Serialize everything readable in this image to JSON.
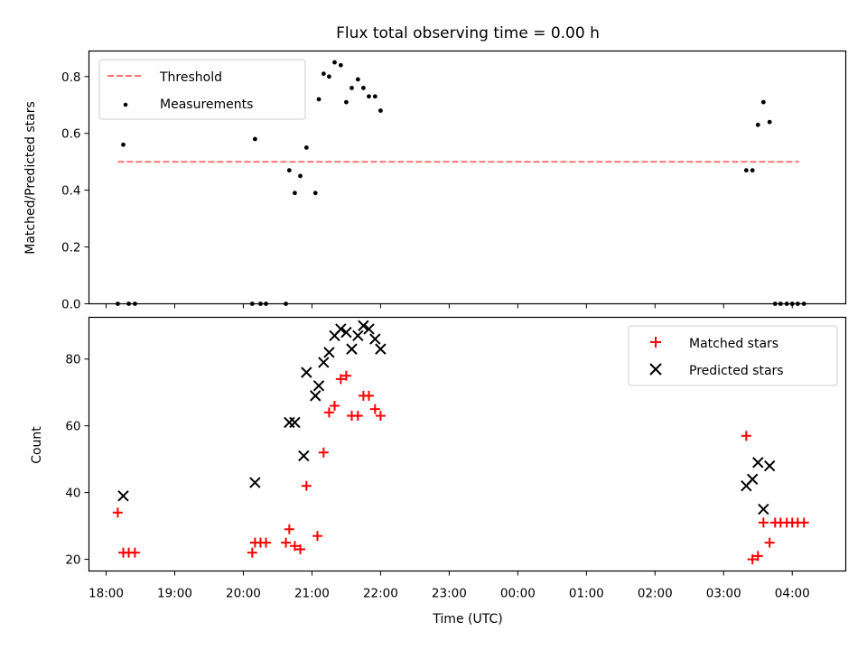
{
  "chart_data": [
    {
      "type": "scatter",
      "title": "Flux total observing time = 0.00 h",
      "xlabel": "",
      "ylabel": "Matched/Predicted stars",
      "xlim": [
        17.75,
        28.78
      ],
      "ylim": [
        0.0,
        0.89
      ],
      "yticks": [
        0.0,
        0.2,
        0.4,
        0.6,
        0.8
      ],
      "ytick_labels": [
        "0.0",
        "0.2",
        "0.4",
        "0.6",
        "0.8"
      ],
      "legend": {
        "position": "top-left",
        "entries": [
          "Threshold",
          "Measurements"
        ]
      },
      "threshold": {
        "name": "Threshold",
        "y": 0.5,
        "x_range": [
          18.17,
          28.1
        ],
        "color": "#ff7373",
        "style": "dashed"
      },
      "series": [
        {
          "name": "Measurements",
          "marker": "dot",
          "color": "#000000",
          "x": [
            18.17,
            18.25,
            18.33,
            18.42,
            20.13,
            20.17,
            20.25,
            20.33,
            20.62,
            20.67,
            20.75,
            20.83,
            20.92,
            21.05,
            21.1,
            21.17,
            21.25,
            21.33,
            21.42,
            21.5,
            21.58,
            21.67,
            21.75,
            21.83,
            21.92,
            22.0,
            27.33,
            27.42,
            27.5,
            27.58,
            27.67,
            27.75,
            27.83,
            27.92,
            28.0,
            28.08,
            28.17
          ],
          "y": [
            0.0,
            0.56,
            0.0,
            0.0,
            0.0,
            0.58,
            0.0,
            0.0,
            0.0,
            0.47,
            0.39,
            0.45,
            0.55,
            0.39,
            0.72,
            0.81,
            0.8,
            0.85,
            0.84,
            0.71,
            0.76,
            0.79,
            0.76,
            0.73,
            0.73,
            0.68,
            0.47,
            0.47,
            0.63,
            0.71,
            0.64,
            0.0,
            0.0,
            0.0,
            0.0,
            0.0,
            0.0
          ]
        }
      ]
    },
    {
      "type": "scatter",
      "title": "",
      "xlabel": "Time (UTC)",
      "ylabel": "Count",
      "xlim": [
        17.75,
        28.78
      ],
      "ylim": [
        16.5,
        92.5
      ],
      "yticks": [
        20,
        40,
        60,
        80
      ],
      "ytick_labels": [
        "20",
        "40",
        "60",
        "80"
      ],
      "xticks": [
        18,
        19,
        20,
        21,
        22,
        23,
        24,
        25,
        26,
        27,
        28
      ],
      "xtick_labels": [
        "18:00",
        "19:00",
        "20:00",
        "21:00",
        "22:00",
        "23:00",
        "00:00",
        "01:00",
        "02:00",
        "03:00",
        "04:00"
      ],
      "legend": {
        "position": "top-right",
        "entries": [
          "Matched stars",
          "Predicted stars"
        ]
      },
      "series": [
        {
          "name": "Matched stars",
          "marker": "plus",
          "color": "#ff0000",
          "x": [
            18.17,
            18.25,
            18.33,
            18.42,
            20.13,
            20.17,
            20.25,
            20.33,
            20.62,
            20.67,
            20.75,
            20.83,
            20.92,
            21.08,
            21.17,
            21.25,
            21.33,
            21.42,
            21.5,
            21.58,
            21.67,
            21.75,
            21.83,
            21.92,
            22.0,
            27.33,
            27.42,
            27.5,
            27.58,
            27.67,
            27.75,
            27.83,
            27.92,
            28.0,
            28.08,
            28.17
          ],
          "y": [
            34,
            22,
            22,
            22,
            22,
            25,
            25,
            25,
            25,
            29,
            24,
            23,
            42,
            27,
            52,
            64,
            66,
            74,
            75,
            63,
            63,
            69,
            69,
            65,
            63,
            57,
            20,
            21,
            31,
            25,
            31,
            31,
            31,
            31,
            31,
            31
          ],
          "note": ""
        },
        {
          "name": "Predicted stars",
          "marker": "x",
          "color": "#000000",
          "x": [
            18.25,
            20.17,
            20.67,
            20.75,
            20.88,
            20.92,
            21.05,
            21.1,
            21.17,
            21.25,
            21.33,
            21.42,
            21.5,
            21.58,
            21.67,
            21.75,
            21.83,
            21.92,
            22.0,
            27.33,
            27.42,
            27.5,
            27.58,
            27.67
          ],
          "y": [
            39,
            43,
            61,
            61,
            51,
            76,
            69,
            72,
            79,
            82,
            87,
            89,
            88,
            83,
            87,
            90,
            89,
            86,
            83,
            42,
            44,
            49,
            35,
            48
          ]
        }
      ]
    }
  ]
}
